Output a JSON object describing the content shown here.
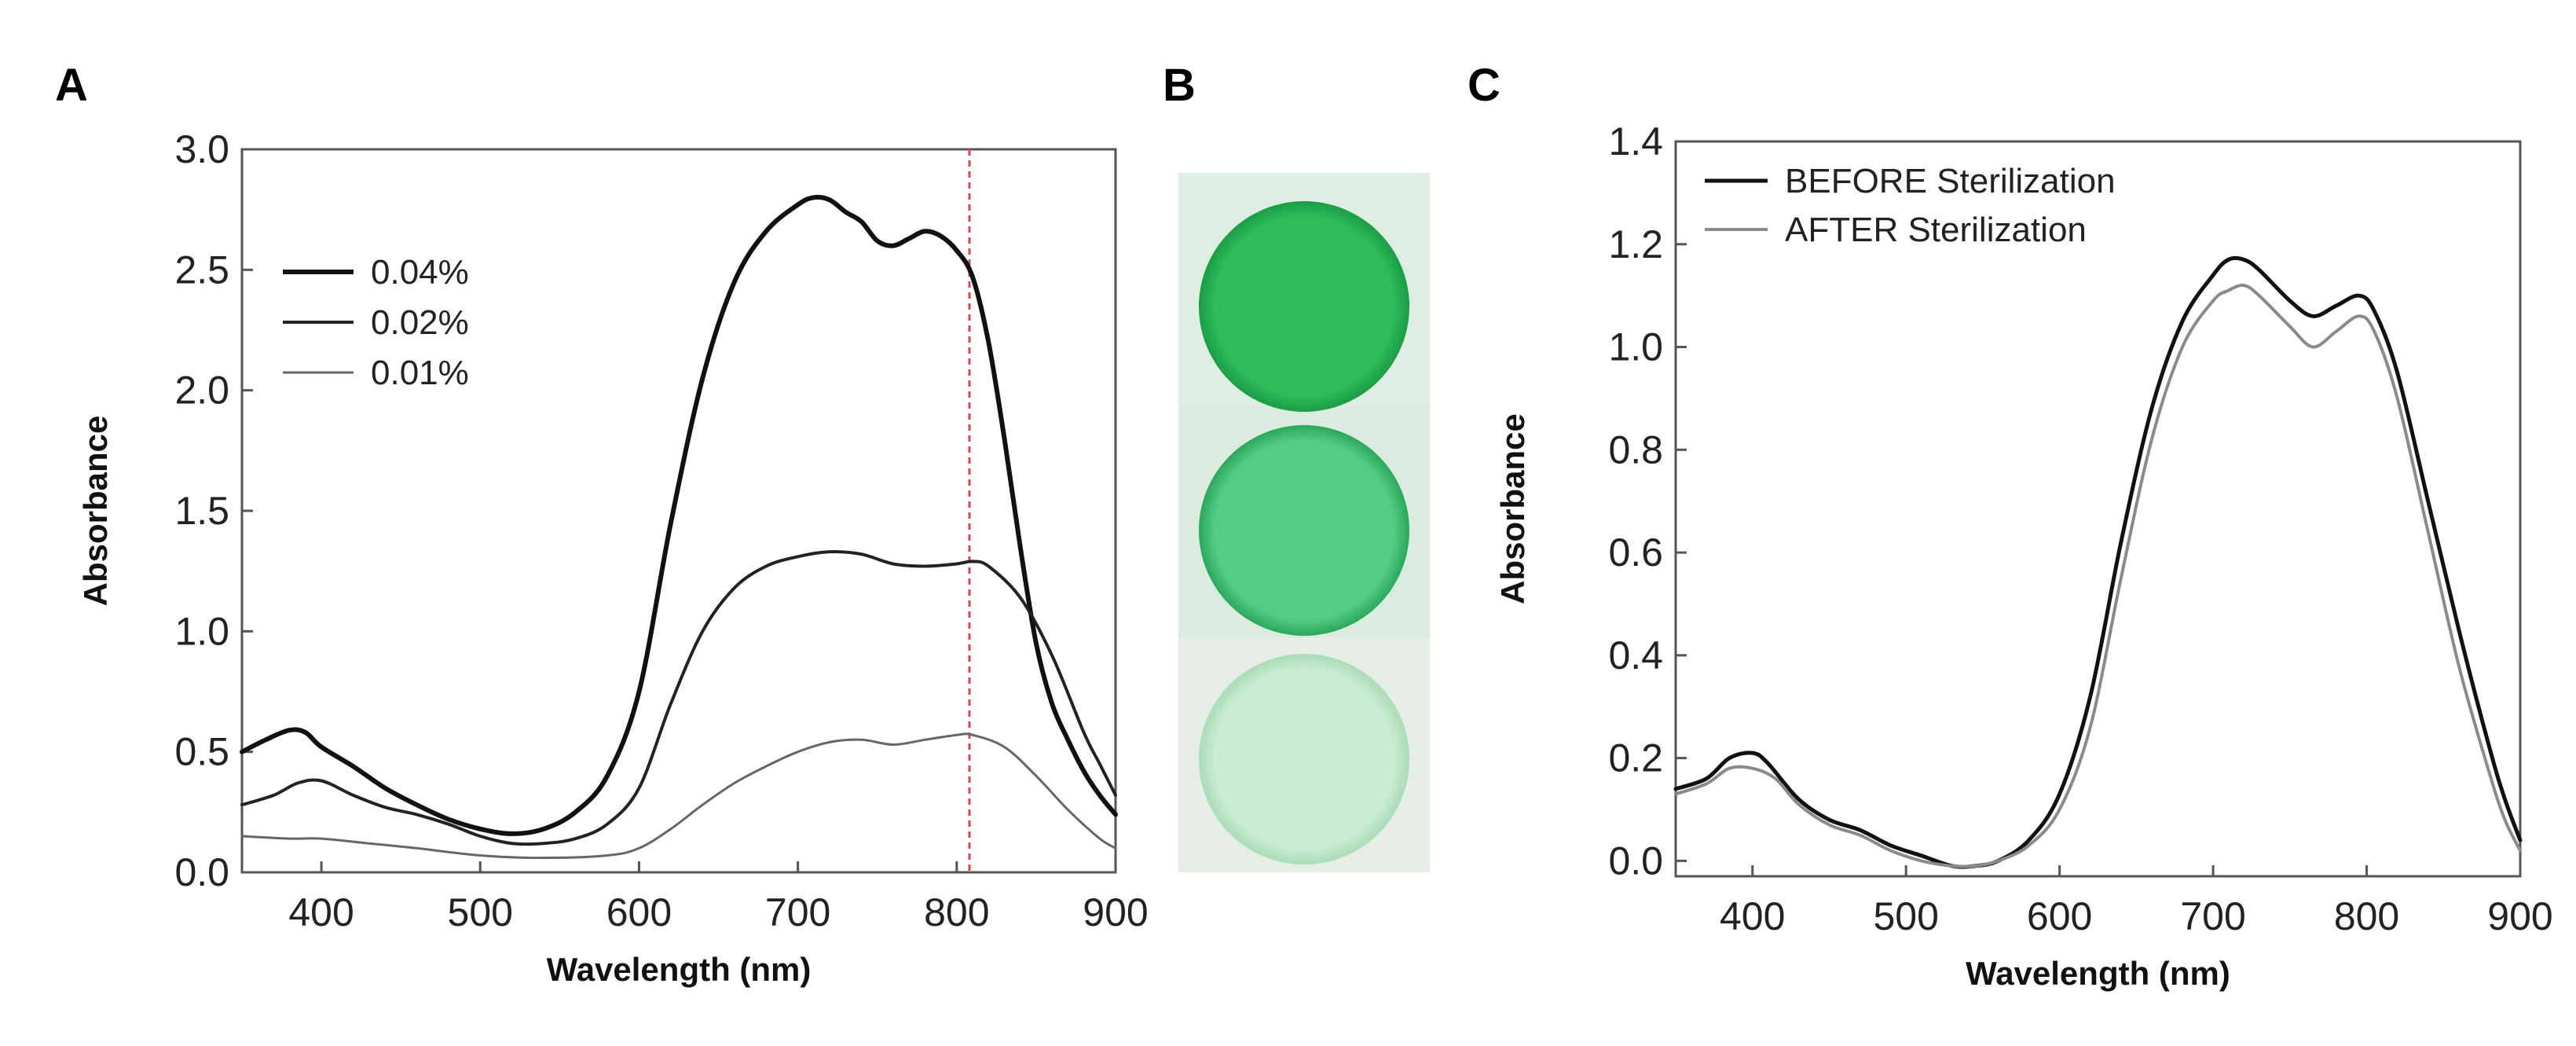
{
  "panels": {
    "a": {
      "letter": "A"
    },
    "b": {
      "letter": "B"
    },
    "c": {
      "letter": "C"
    }
  },
  "wells": [
    {
      "color_center": "#2dbb5b",
      "color_edge": "#1a9d44",
      "color_bg": "#dcecdf"
    },
    {
      "color_center": "#54cc85",
      "color_edge": "#2aa85a",
      "color_bg": "#dbeadf"
    },
    {
      "color_center": "#c9ecd2",
      "color_edge": "#a9dcb6",
      "color_bg": "#e8efe9"
    }
  ],
  "chart_data": [
    {
      "id": "A",
      "type": "line",
      "title": "",
      "xlabel": "Wavelength (nm)",
      "ylabel": "Absorbance",
      "xlim": [
        350,
        900
      ],
      "ylim": [
        0.0,
        3.0
      ],
      "xticks": [
        400,
        500,
        600,
        700,
        800,
        900
      ],
      "yticks": [
        0.0,
        0.5,
        1.0,
        1.5,
        2.0,
        2.5,
        3.0
      ],
      "xtick_labels": [
        "400",
        "500",
        "600",
        "700",
        "800",
        "900"
      ],
      "ytick_labels": [
        "0.0",
        "0.5",
        "1.0",
        "1.5",
        "2.0",
        "2.5",
        "3.0"
      ],
      "grid": false,
      "legend_position": "top-left",
      "annotations": [
        {
          "type": "vertical-dashed-line",
          "x": 808,
          "color": "#e0474c"
        }
      ],
      "series": [
        {
          "name": "0.04%",
          "color": "#111111",
          "width": 6,
          "points": [
            [
              350,
              0.5
            ],
            [
              365,
              0.55
            ],
            [
              380,
              0.59
            ],
            [
              390,
              0.58
            ],
            [
              400,
              0.52
            ],
            [
              420,
              0.44
            ],
            [
              440,
              0.35
            ],
            [
              460,
              0.28
            ],
            [
              480,
              0.22
            ],
            [
              500,
              0.18
            ],
            [
              520,
              0.16
            ],
            [
              540,
              0.18
            ],
            [
              560,
              0.25
            ],
            [
              580,
              0.4
            ],
            [
              600,
              0.75
            ],
            [
              620,
              1.45
            ],
            [
              640,
              2.05
            ],
            [
              660,
              2.45
            ],
            [
              680,
              2.66
            ],
            [
              700,
              2.77
            ],
            [
              710,
              2.8
            ],
            [
              720,
              2.79
            ],
            [
              730,
              2.74
            ],
            [
              740,
              2.7
            ],
            [
              750,
              2.62
            ],
            [
              760,
              2.6
            ],
            [
              770,
              2.63
            ],
            [
              780,
              2.66
            ],
            [
              790,
              2.64
            ],
            [
              800,
              2.58
            ],
            [
              810,
              2.47
            ],
            [
              820,
              2.2
            ],
            [
              830,
              1.8
            ],
            [
              840,
              1.35
            ],
            [
              850,
              0.95
            ],
            [
              860,
              0.7
            ],
            [
              870,
              0.55
            ],
            [
              880,
              0.42
            ],
            [
              890,
              0.32
            ],
            [
              900,
              0.24
            ]
          ]
        },
        {
          "name": "0.02%",
          "color": "#222222",
          "width": 4,
          "points": [
            [
              350,
              0.28
            ],
            [
              370,
              0.32
            ],
            [
              385,
              0.37
            ],
            [
              400,
              0.38
            ],
            [
              420,
              0.32
            ],
            [
              440,
              0.27
            ],
            [
              460,
              0.24
            ],
            [
              480,
              0.2
            ],
            [
              500,
              0.15
            ],
            [
              520,
              0.12
            ],
            [
              540,
              0.12
            ],
            [
              560,
              0.14
            ],
            [
              580,
              0.2
            ],
            [
              600,
              0.35
            ],
            [
              620,
              0.7
            ],
            [
              640,
              1.0
            ],
            [
              660,
              1.18
            ],
            [
              680,
              1.27
            ],
            [
              700,
              1.31
            ],
            [
              720,
              1.33
            ],
            [
              740,
              1.32
            ],
            [
              760,
              1.28
            ],
            [
              780,
              1.27
            ],
            [
              800,
              1.28
            ],
            [
              810,
              1.29
            ],
            [
              820,
              1.27
            ],
            [
              840,
              1.14
            ],
            [
              860,
              0.9
            ],
            [
              880,
              0.58
            ],
            [
              890,
              0.45
            ],
            [
              900,
              0.32
            ]
          ]
        },
        {
          "name": "0.01%",
          "color": "#666666",
          "width": 3,
          "points": [
            [
              350,
              0.15
            ],
            [
              380,
              0.14
            ],
            [
              400,
              0.14
            ],
            [
              430,
              0.12
            ],
            [
              460,
              0.1
            ],
            [
              500,
              0.07
            ],
            [
              540,
              0.06
            ],
            [
              580,
              0.07
            ],
            [
              600,
              0.1
            ],
            [
              620,
              0.18
            ],
            [
              640,
              0.28
            ],
            [
              660,
              0.37
            ],
            [
              680,
              0.44
            ],
            [
              700,
              0.5
            ],
            [
              720,
              0.54
            ],
            [
              740,
              0.55
            ],
            [
              760,
              0.53
            ],
            [
              780,
              0.55
            ],
            [
              800,
              0.57
            ],
            [
              810,
              0.57
            ],
            [
              830,
              0.52
            ],
            [
              850,
              0.4
            ],
            [
              870,
              0.26
            ],
            [
              890,
              0.14
            ],
            [
              900,
              0.1
            ]
          ]
        }
      ]
    },
    {
      "id": "C",
      "type": "line",
      "title": "",
      "xlabel": "Wavelength (nm)",
      "ylabel": "Absorbance",
      "xlim": [
        350,
        900
      ],
      "ylim": [
        -0.03,
        1.4
      ],
      "xticks": [
        400,
        500,
        600,
        700,
        800,
        900
      ],
      "yticks": [
        0.0,
        0.2,
        0.4,
        0.6,
        0.8,
        1.0,
        1.2,
        1.4
      ],
      "xtick_labels": [
        "400",
        "500",
        "600",
        "700",
        "800",
        "900"
      ],
      "ytick_labels": [
        "0.0",
        "0.2",
        "0.4",
        "0.6",
        "0.8",
        "1.0",
        "1.2",
        "1.4"
      ],
      "grid": false,
      "legend_position": "top-left",
      "series": [
        {
          "name": "BEFORE Sterilization",
          "color": "#111111",
          "width": 5,
          "points": [
            [
              350,
              0.14
            ],
            [
              370,
              0.16
            ],
            [
              385,
              0.2
            ],
            [
              400,
              0.21
            ],
            [
              410,
              0.19
            ],
            [
              430,
              0.12
            ],
            [
              450,
              0.08
            ],
            [
              470,
              0.06
            ],
            [
              490,
              0.03
            ],
            [
              510,
              0.01
            ],
            [
              530,
              -0.01
            ],
            [
              545,
              -0.01
            ],
            [
              560,
              0.0
            ],
            [
              580,
              0.04
            ],
            [
              600,
              0.13
            ],
            [
              620,
              0.32
            ],
            [
              640,
              0.62
            ],
            [
              660,
              0.88
            ],
            [
              680,
              1.05
            ],
            [
              700,
              1.14
            ],
            [
              710,
              1.17
            ],
            [
              720,
              1.17
            ],
            [
              730,
              1.15
            ],
            [
              750,
              1.09
            ],
            [
              765,
              1.06
            ],
            [
              780,
              1.08
            ],
            [
              795,
              1.1
            ],
            [
              805,
              1.07
            ],
            [
              820,
              0.95
            ],
            [
              840,
              0.7
            ],
            [
              860,
              0.45
            ],
            [
              880,
              0.22
            ],
            [
              890,
              0.12
            ],
            [
              900,
              0.04
            ]
          ]
        },
        {
          "name": "AFTER Sterilization",
          "color": "#8a8a8a",
          "width": 4,
          "points": [
            [
              350,
              0.13
            ],
            [
              370,
              0.15
            ],
            [
              385,
              0.18
            ],
            [
              400,
              0.18
            ],
            [
              415,
              0.16
            ],
            [
              430,
              0.11
            ],
            [
              450,
              0.07
            ],
            [
              470,
              0.05
            ],
            [
              490,
              0.02
            ],
            [
              510,
              0.0
            ],
            [
              530,
              -0.01
            ],
            [
              545,
              -0.01
            ],
            [
              560,
              0.0
            ],
            [
              580,
              0.03
            ],
            [
              600,
              0.1
            ],
            [
              620,
              0.26
            ],
            [
              640,
              0.55
            ],
            [
              660,
              0.82
            ],
            [
              680,
              1.0
            ],
            [
              700,
              1.09
            ],
            [
              710,
              1.11
            ],
            [
              720,
              1.12
            ],
            [
              730,
              1.1
            ],
            [
              750,
              1.04
            ],
            [
              765,
              1.0
            ],
            [
              780,
              1.03
            ],
            [
              795,
              1.06
            ],
            [
              805,
              1.03
            ],
            [
              820,
              0.9
            ],
            [
              840,
              0.64
            ],
            [
              860,
              0.38
            ],
            [
              880,
              0.17
            ],
            [
              890,
              0.08
            ],
            [
              900,
              0.02
            ]
          ]
        }
      ]
    }
  ]
}
